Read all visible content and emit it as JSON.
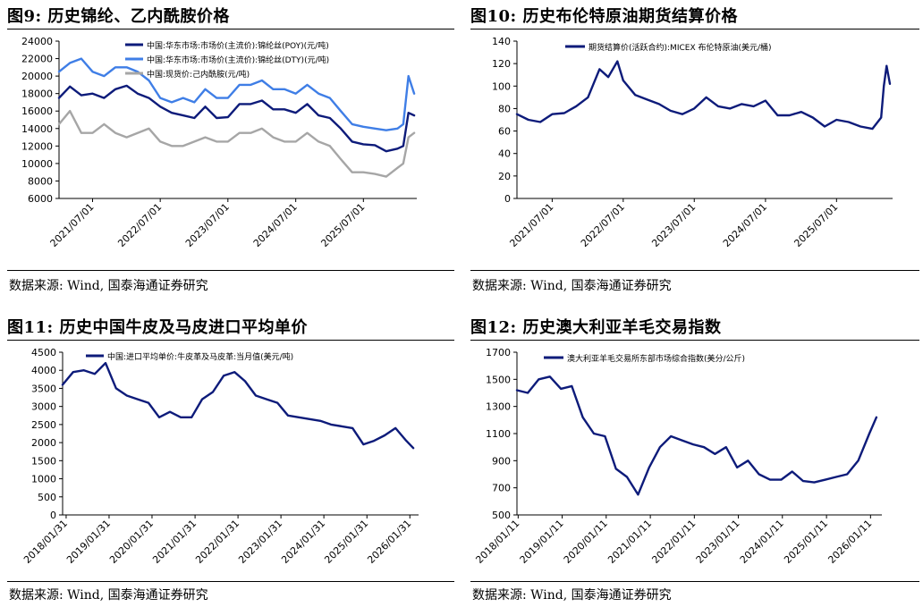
{
  "panels": [
    {
      "title": "图9:  历史锦纶、乙内酰胺价格",
      "source": "数据来源:  Wind,  国泰海通证券研究"
    },
    {
      "title": "图10:  历史布伦特原油期货结算价格",
      "source": "数据来源:  Wind,  国泰海通证券研究"
    },
    {
      "title": "图11:  历史中国牛皮及马皮进口平均单价",
      "source": "数据来源:  Wind,  国泰海通证券研究"
    },
    {
      "title": "图12:  历史澳大利亚羊毛交易指数",
      "source": "数据来源:  Wind,  国泰海通证券研究"
    }
  ],
  "chart_data": [
    {
      "type": "line",
      "title": "",
      "xlabel": "",
      "ylabel": "",
      "x_ticks": [
        "2021/07/01",
        "2022/07/01",
        "2023/07/01",
        "2024/07/01",
        "2025/07/01"
      ],
      "x_range": [
        "2021-01-01",
        "2026-04-15"
      ],
      "ylim": [
        6000,
        24000
      ],
      "y_ticks": [
        6000,
        8000,
        10000,
        12000,
        14000,
        16000,
        18000,
        20000,
        22000,
        24000
      ],
      "legend_position": "top",
      "series": [
        {
          "name": "中国:华东市场:市场价(主流价):锦纶丝(POY)(元/吨)",
          "color": "#0d1b7a",
          "x": [
            "2021-01-01",
            "2021-03-01",
            "2021-05-01",
            "2021-07-01",
            "2021-09-01",
            "2021-11-01",
            "2022-01-01",
            "2022-03-01",
            "2022-05-01",
            "2022-07-01",
            "2022-09-01",
            "2022-11-01",
            "2023-01-01",
            "2023-03-01",
            "2023-05-01",
            "2023-07-01",
            "2023-09-01",
            "2023-11-01",
            "2024-01-01",
            "2024-03-01",
            "2024-05-01",
            "2024-07-01",
            "2024-09-01",
            "2024-11-01",
            "2025-01-01",
            "2025-03-01",
            "2025-05-01",
            "2025-07-01",
            "2025-09-01",
            "2025-11-01",
            "2026-01-01",
            "2026-02-01",
            "2026-03-01",
            "2026-04-01"
          ],
          "y": [
            17500,
            18800,
            17800,
            18000,
            17500,
            18500,
            18900,
            18000,
            17500,
            16500,
            15800,
            15500,
            15200,
            16500,
            15200,
            15300,
            16800,
            16800,
            17200,
            16200,
            16200,
            15800,
            16800,
            15500,
            15200,
            14000,
            12500,
            12200,
            12100,
            11400,
            11700,
            12000,
            15800,
            15500
          ]
        },
        {
          "name": "中国:华东市场:市场价(主流价):锦纶丝(DTY)(元/吨)",
          "color": "#3f7ee6",
          "x": [
            "2021-01-01",
            "2021-03-01",
            "2021-05-01",
            "2021-07-01",
            "2021-09-01",
            "2021-11-01",
            "2022-01-01",
            "2022-03-01",
            "2022-05-01",
            "2022-07-01",
            "2022-09-01",
            "2022-11-01",
            "2023-01-01",
            "2023-03-01",
            "2023-05-01",
            "2023-07-01",
            "2023-09-01",
            "2023-11-01",
            "2024-01-01",
            "2024-03-01",
            "2024-05-01",
            "2024-07-01",
            "2024-09-01",
            "2024-11-01",
            "2025-01-01",
            "2025-03-01",
            "2025-05-01",
            "2025-07-01",
            "2025-09-01",
            "2025-11-01",
            "2026-01-01",
            "2026-02-01",
            "2026-03-01",
            "2026-04-01"
          ],
          "y": [
            20500,
            21500,
            22000,
            20500,
            20000,
            21000,
            21000,
            20500,
            19500,
            17500,
            17000,
            17500,
            17000,
            18500,
            17500,
            17500,
            19000,
            19000,
            19500,
            18500,
            18500,
            18000,
            19000,
            18000,
            17500,
            16000,
            14500,
            14200,
            14000,
            13800,
            14000,
            14500,
            20000,
            18000
          ]
        },
        {
          "name": "中国:现货价:己内酰胺(元/吨)",
          "color": "#a6a6a6",
          "x": [
            "2021-01-01",
            "2021-03-01",
            "2021-05-01",
            "2021-07-01",
            "2021-09-01",
            "2021-11-01",
            "2022-01-01",
            "2022-03-01",
            "2022-05-01",
            "2022-07-01",
            "2022-09-01",
            "2022-11-01",
            "2023-01-01",
            "2023-03-01",
            "2023-05-01",
            "2023-07-01",
            "2023-09-01",
            "2023-11-01",
            "2024-01-01",
            "2024-03-01",
            "2024-05-01",
            "2024-07-01",
            "2024-09-01",
            "2024-11-01",
            "2025-01-01",
            "2025-03-01",
            "2025-05-01",
            "2025-07-01",
            "2025-09-01",
            "2025-11-01",
            "2026-01-01",
            "2026-02-01",
            "2026-03-01",
            "2026-04-01"
          ],
          "y": [
            14500,
            16000,
            13500,
            13500,
            14500,
            13500,
            13000,
            13500,
            14000,
            12500,
            12000,
            12000,
            12500,
            13000,
            12500,
            12500,
            13500,
            13500,
            14000,
            13000,
            12500,
            12500,
            13500,
            12500,
            12000,
            10500,
            9000,
            9000,
            8800,
            8500,
            9500,
            10000,
            13000,
            13500
          ]
        }
      ]
    },
    {
      "type": "line",
      "title": "",
      "xlabel": "",
      "ylabel": "",
      "x_ticks": [
        "2021/07/01",
        "2022/07/01",
        "2023/07/01",
        "2024/07/01",
        "2025/07/01"
      ],
      "x_range": [
        "2021-01-01",
        "2026-04-15"
      ],
      "ylim": [
        0,
        140
      ],
      "y_ticks": [
        0,
        20,
        40,
        60,
        80,
        100,
        120,
        140
      ],
      "legend_position": "top",
      "series": [
        {
          "name": "期货结算价(活跃合约):MICEX 布伦特原油(美元/桶)",
          "color": "#0d1b7a",
          "x": [
            "2021-01-01",
            "2021-03-01",
            "2021-05-01",
            "2021-07-01",
            "2021-09-01",
            "2021-11-01",
            "2022-01-01",
            "2022-03-01",
            "2022-04-15",
            "2022-06-01",
            "2022-07-01",
            "2022-09-01",
            "2022-11-01",
            "2023-01-01",
            "2023-03-01",
            "2023-05-01",
            "2023-07-01",
            "2023-09-01",
            "2023-11-01",
            "2024-01-01",
            "2024-03-01",
            "2024-05-01",
            "2024-07-01",
            "2024-09-01",
            "2024-11-01",
            "2025-01-01",
            "2025-03-01",
            "2025-05-01",
            "2025-07-01",
            "2025-09-01",
            "2025-11-01",
            "2026-01-01",
            "2026-02-15",
            "2026-03-01",
            "2026-03-15",
            "2026-04-01"
          ],
          "y": [
            75,
            70,
            68,
            75,
            76,
            82,
            90,
            115,
            108,
            122,
            105,
            92,
            88,
            84,
            78,
            75,
            80,
            90,
            82,
            80,
            84,
            82,
            87,
            74,
            74,
            77,
            72,
            64,
            70,
            68,
            64,
            62,
            72,
            100,
            118,
            102
          ]
        }
      ]
    },
    {
      "type": "line",
      "title": "",
      "xlabel": "",
      "ylabel": "",
      "x_ticks": [
        "2018/01/31",
        "2019/01/31",
        "2020/01/31",
        "2021/01/31",
        "2022/01/31",
        "2023/01/31",
        "2024/01/31",
        "2025/01/31",
        "2026/01/31"
      ],
      "x_range": [
        "2018-01-01",
        "2026-04-15"
      ],
      "ylim": [
        0,
        4500
      ],
      "y_ticks": [
        0,
        500,
        1000,
        1500,
        2000,
        2500,
        3000,
        3500,
        4000,
        4500
      ],
      "legend_position": "top",
      "series": [
        {
          "name": "中国:进口平均单价:牛皮革及马皮革:当月值(美元/吨)",
          "color": "#0d1b7a",
          "x": [
            "2018-01-01",
            "2018-04-01",
            "2018-07-01",
            "2018-10-01",
            "2019-01-01",
            "2019-04-01",
            "2019-07-01",
            "2019-10-01",
            "2020-01-01",
            "2020-04-01",
            "2020-07-01",
            "2020-10-01",
            "2021-01-01",
            "2021-04-01",
            "2021-07-01",
            "2021-10-01",
            "2022-01-01",
            "2022-04-01",
            "2022-07-01",
            "2022-10-01",
            "2023-01-01",
            "2023-04-01",
            "2023-07-01",
            "2023-10-01",
            "2024-01-01",
            "2024-04-01",
            "2024-07-01",
            "2024-10-01",
            "2025-01-01",
            "2025-04-01",
            "2025-07-01",
            "2025-10-01",
            "2026-01-01",
            "2026-03-01"
          ],
          "y": [
            3600,
            3950,
            4000,
            3900,
            4200,
            3500,
            3300,
            3200,
            3100,
            2700,
            2850,
            2700,
            2700,
            3200,
            3400,
            3850,
            3950,
            3700,
            3300,
            3200,
            3100,
            2750,
            2700,
            2650,
            2600,
            2500,
            2450,
            2400,
            1950,
            2050,
            2200,
            2400,
            2050,
            1850
          ]
        }
      ]
    },
    {
      "type": "line",
      "title": "",
      "xlabel": "",
      "ylabel": "",
      "x_ticks": [
        "2018/01/11",
        "2019/01/11",
        "2020/01/11",
        "2021/01/11",
        "2022/01/11",
        "2023/01/11",
        "2024/01/11",
        "2025/01/11",
        "2026/01/11"
      ],
      "x_range": [
        "2018-01-01",
        "2026-04-15"
      ],
      "ylim": [
        500,
        1700
      ],
      "y_ticks": [
        500,
        700,
        900,
        1100,
        1300,
        1500,
        1700
      ],
      "legend_position": "top",
      "series": [
        {
          "name": "澳大利亚羊毛交易所东部市场综合指数(美分/公斤)",
          "color": "#0d1b7a",
          "x": [
            "2018-01-01",
            "2018-04-01",
            "2018-07-01",
            "2018-10-01",
            "2019-01-01",
            "2019-04-01",
            "2019-07-01",
            "2019-10-01",
            "2020-01-01",
            "2020-04-01",
            "2020-07-01",
            "2020-10-01",
            "2021-01-01",
            "2021-04-01",
            "2021-07-01",
            "2021-10-01",
            "2022-01-01",
            "2022-04-01",
            "2022-07-01",
            "2022-10-01",
            "2023-01-01",
            "2023-04-01",
            "2023-07-01",
            "2023-10-01",
            "2024-01-01",
            "2024-04-01",
            "2024-07-01",
            "2024-10-01",
            "2025-01-01",
            "2025-04-01",
            "2025-07-01",
            "2025-10-01",
            "2026-01-01",
            "2026-03-01"
          ],
          "y": [
            1420,
            1400,
            1500,
            1520,
            1430,
            1450,
            1220,
            1100,
            1080,
            840,
            780,
            650,
            850,
            1000,
            1080,
            1050,
            1020,
            1000,
            950,
            1000,
            850,
            900,
            800,
            760,
            760,
            820,
            750,
            740,
            760,
            780,
            800,
            900,
            1100,
            1220
          ]
        }
      ]
    }
  ]
}
